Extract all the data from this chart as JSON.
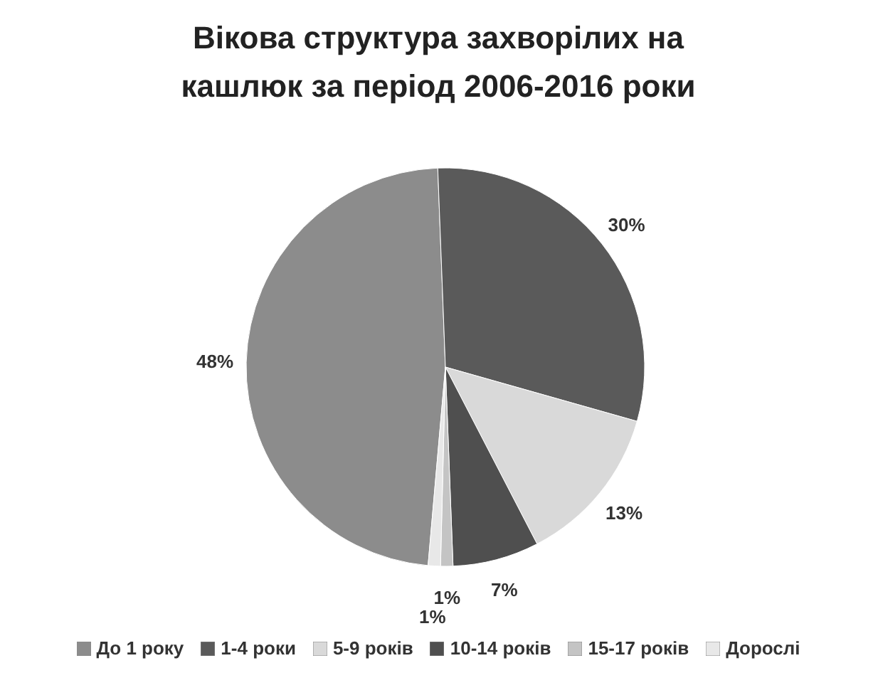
{
  "chart_data": {
    "type": "pie",
    "title": "Вікова структура захворілих на кашлюк за період 2006-2016 роки",
    "categories": [
      "До 1 року",
      "1-4 роки",
      "5-9 років",
      "10-14 років",
      "15-17 років",
      "Дорослі"
    ],
    "values": [
      48,
      30,
      13,
      7,
      1,
      1
    ],
    "value_labels": [
      "48%",
      "30%",
      "13%",
      "7%",
      "1%",
      "1%"
    ],
    "colors": [
      "#8c8c8c",
      "#5a5a5a",
      "#d9d9d9",
      "#4f4f4f",
      "#c4c4c4",
      "#e8e8e8"
    ],
    "legend": "bottom"
  }
}
